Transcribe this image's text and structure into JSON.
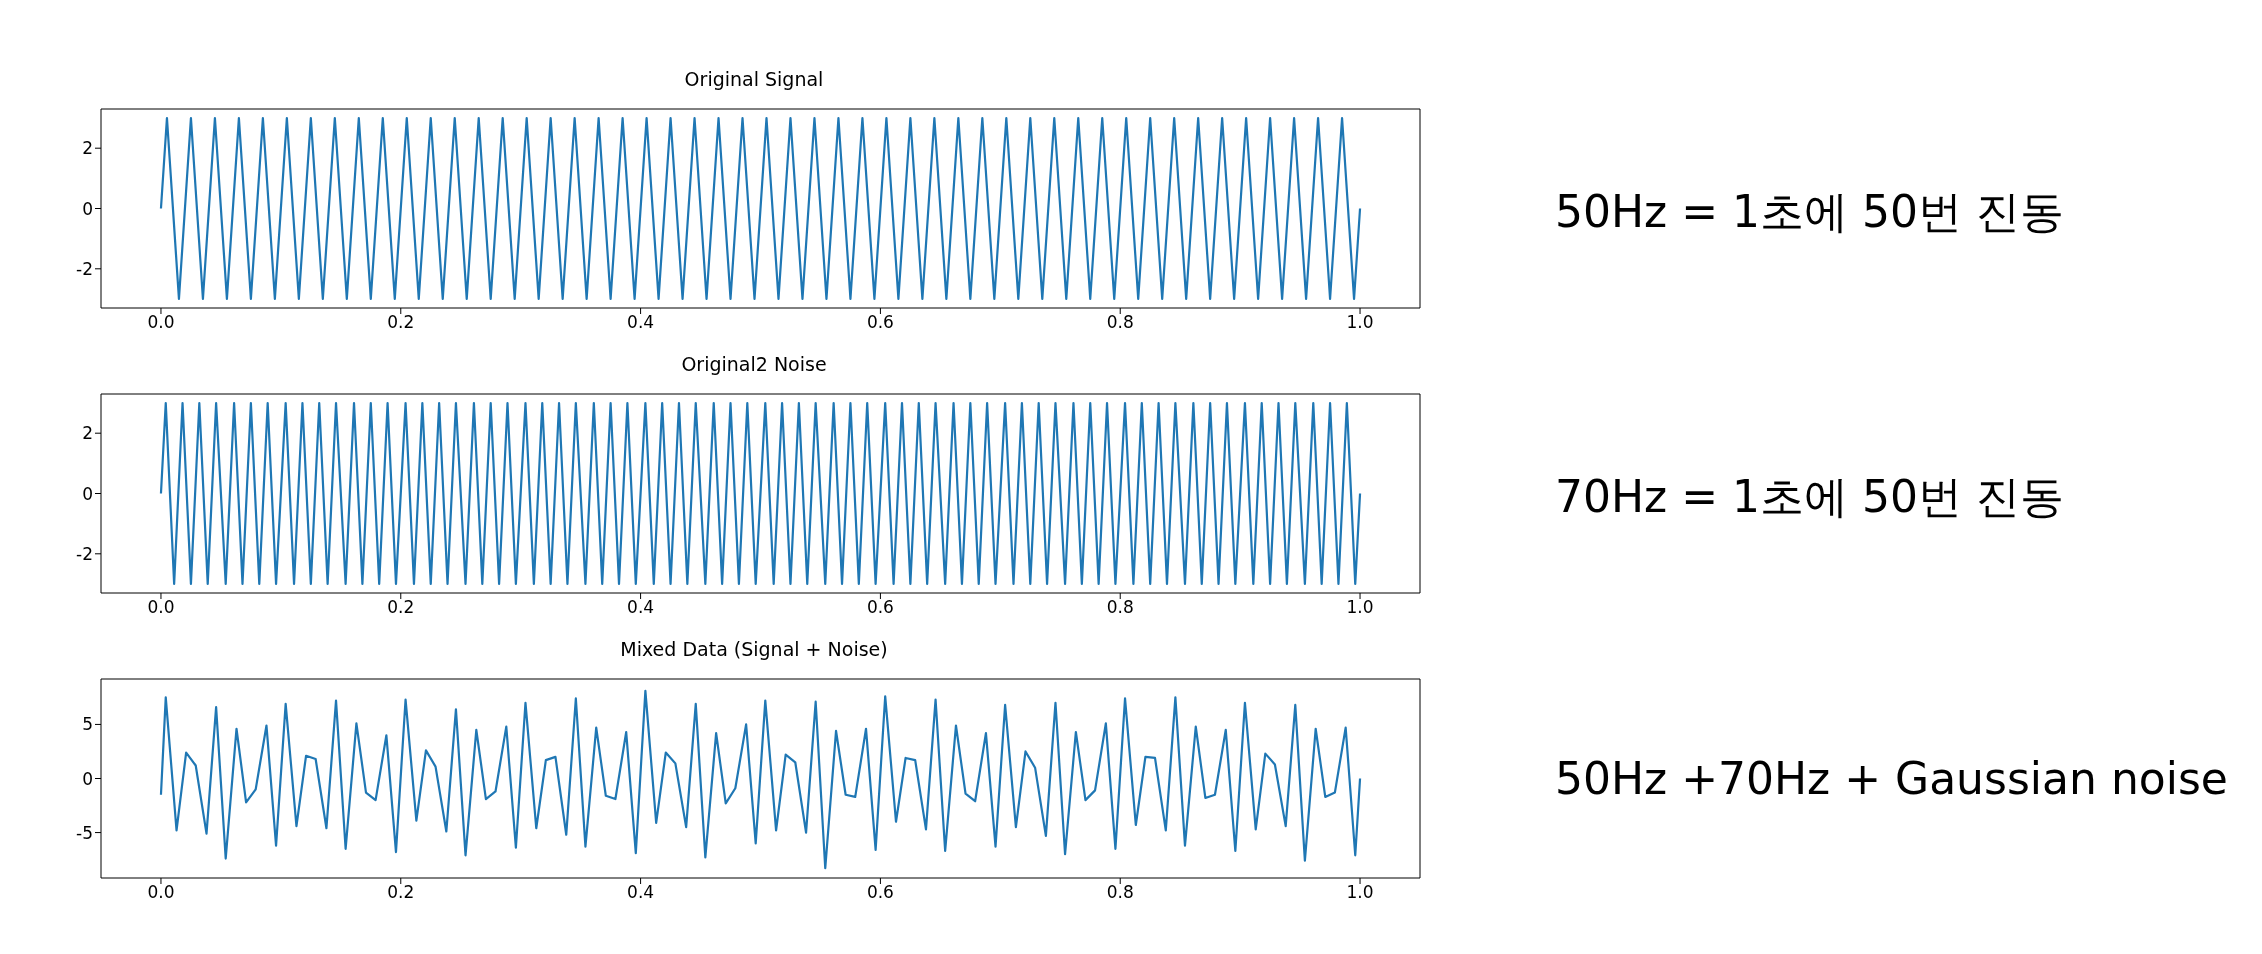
{
  "chart_data": [
    {
      "type": "line",
      "title": "Original Signal",
      "annotations": [
        "50Hz = 1초에 50번 진동"
      ],
      "xlim": [
        -0.05,
        1.05
      ],
      "xticks": [
        {
          "value": 0,
          "label": "0.0"
        },
        {
          "value": 0.2,
          "label": "0.2"
        },
        {
          "value": 0.4,
          "label": "0.4"
        },
        {
          "value": 0.6,
          "label": "0.6"
        },
        {
          "value": 0.8,
          "label": "0.8"
        },
        {
          "value": 1,
          "label": "1.0"
        }
      ],
      "ylim": [
        -3.3,
        3.3
      ],
      "yticks": [
        -2,
        0,
        2
      ],
      "series": [
        {
          "color": "#1f77b4",
          "x": [
            0,
            0.005,
            0.015,
            0.025,
            0.035,
            0.045,
            0.055,
            0.065,
            0.075,
            0.085,
            0.095,
            0.105,
            0.115,
            0.125,
            0.135,
            0.145,
            0.155,
            0.165,
            0.175,
            0.185,
            0.195,
            0.205,
            0.215,
            0.225,
            0.235,
            0.245,
            0.255,
            0.265,
            0.275,
            0.285,
            0.295,
            0.305,
            0.315,
            0.325,
            0.335,
            0.345,
            0.355,
            0.365,
            0.375,
            0.385,
            0.395,
            0.405,
            0.415,
            0.425,
            0.435,
            0.445,
            0.455,
            0.465,
            0.475,
            0.485,
            0.495,
            0.505,
            0.515,
            0.525,
            0.535,
            0.545,
            0.555,
            0.565,
            0.575,
            0.585,
            0.595,
            0.605,
            0.615,
            0.625,
            0.635,
            0.645,
            0.655,
            0.665,
            0.675,
            0.685,
            0.695,
            0.705,
            0.715,
            0.725,
            0.735,
            0.745,
            0.755,
            0.765,
            0.775,
            0.785,
            0.795,
            0.805,
            0.815,
            0.825,
            0.835,
            0.845,
            0.855,
            0.865,
            0.875,
            0.885,
            0.895,
            0.905,
            0.915,
            0.925,
            0.935,
            0.945,
            0.955,
            0.965,
            0.975,
            0.985,
            0.995,
            1
          ],
          "values": [
            0,
            3,
            -3,
            3,
            -3,
            3,
            -3,
            3,
            -3,
            3,
            -3,
            3,
            -3,
            3,
            -3,
            3,
            -3,
            3,
            -3,
            3,
            -3,
            3,
            -3,
            3,
            -3,
            3,
            -3,
            3,
            -3,
            3,
            -3,
            3,
            -3,
            3,
            -3,
            3,
            -3,
            3,
            -3,
            3,
            -3,
            3,
            -3,
            3,
            -3,
            3,
            -3,
            3,
            -3,
            3,
            -3,
            3,
            -3,
            3,
            -3,
            3,
            -3,
            3,
            -3,
            3,
            -3,
            3,
            -3,
            3,
            -3,
            3,
            -3,
            3,
            -3,
            3,
            -3,
            3,
            -3,
            3,
            -3,
            3,
            -3,
            3,
            -3,
            3,
            -3,
            3,
            -3,
            3,
            -3,
            3,
            -3,
            3,
            -3,
            3,
            -3,
            3,
            -3,
            3,
            -3,
            3,
            -3,
            3,
            -3,
            3,
            -3,
            0
          ]
        }
      ]
    },
    {
      "type": "line",
      "title": "Original2 Noise",
      "annotations": [
        "70Hz = 1초에 50번 진동"
      ],
      "xlim": [
        -0.05,
        1.05
      ],
      "xticks": [
        {
          "value": 0,
          "label": "0.0"
        },
        {
          "value": 0.2,
          "label": "0.2"
        },
        {
          "value": 0.4,
          "label": "0.4"
        },
        {
          "value": 0.6,
          "label": "0.6"
        },
        {
          "value": 0.8,
          "label": "0.8"
        },
        {
          "value": 1,
          "label": "1.0"
        }
      ],
      "ylim": [
        -3.3,
        3.3
      ],
      "yticks": [
        -2,
        0,
        2
      ],
      "series": [
        {
          "color": "#1f77b4",
          "x": [
            0,
            0.004,
            0.011,
            0.018,
            0.025,
            0.032,
            0.039,
            0.046,
            0.054,
            0.061,
            0.068,
            0.075,
            0.082,
            0.089,
            0.096,
            0.104,
            0.111,
            0.118,
            0.125,
            0.132,
            0.139,
            0.146,
            0.154,
            0.161,
            0.168,
            0.175,
            0.182,
            0.189,
            0.196,
            0.204,
            0.211,
            0.218,
            0.225,
            0.232,
            0.239,
            0.246,
            0.254,
            0.261,
            0.268,
            0.275,
            0.282,
            0.289,
            0.296,
            0.304,
            0.311,
            0.318,
            0.325,
            0.332,
            0.339,
            0.346,
            0.354,
            0.361,
            0.368,
            0.375,
            0.382,
            0.389,
            0.396,
            0.404,
            0.411,
            0.418,
            0.425,
            0.432,
            0.439,
            0.446,
            0.454,
            0.461,
            0.468,
            0.475,
            0.482,
            0.489,
            0.496,
            0.504,
            0.511,
            0.518,
            0.525,
            0.532,
            0.539,
            0.546,
            0.554,
            0.561,
            0.568,
            0.575,
            0.582,
            0.589,
            0.596,
            0.604,
            0.611,
            0.618,
            0.625,
            0.632,
            0.639,
            0.646,
            0.654,
            0.661,
            0.668,
            0.675,
            0.682,
            0.689,
            0.696,
            0.704,
            0.711,
            0.718,
            0.725,
            0.732,
            0.739,
            0.746,
            0.754,
            0.761,
            0.768,
            0.775,
            0.782,
            0.789,
            0.796,
            0.804,
            0.811,
            0.818,
            0.825,
            0.832,
            0.839,
            0.846,
            0.854,
            0.861,
            0.868,
            0.875,
            0.882,
            0.889,
            0.896,
            0.904,
            0.911,
            0.918,
            0.925,
            0.932,
            0.939,
            0.946,
            0.954,
            0.961,
            0.968,
            0.975,
            0.982,
            0.989,
            0.996,
            1
          ],
          "values": [
            0,
            3,
            -3,
            3,
            -3,
            3,
            -3,
            3,
            -3,
            3,
            -3,
            3,
            -3,
            3,
            -3,
            3,
            -3,
            3,
            -3,
            3,
            -3,
            3,
            -3,
            3,
            -3,
            3,
            -3,
            3,
            -3,
            3,
            -3,
            3,
            -3,
            3,
            -3,
            3,
            -3,
            3,
            -3,
            3,
            -3,
            3,
            -3,
            3,
            -3,
            3,
            -3,
            3,
            -3,
            3,
            -3,
            3,
            -3,
            3,
            -3,
            3,
            -3,
            3,
            -3,
            3,
            -3,
            3,
            -3,
            3,
            -3,
            3,
            -3,
            3,
            -3,
            3,
            -3,
            3,
            -3,
            3,
            -3,
            3,
            -3,
            3,
            -3,
            3,
            -3,
            3,
            -3,
            3,
            -3,
            3,
            -3,
            3,
            -3,
            3,
            -3,
            3,
            -3,
            3,
            -3,
            3,
            -3,
            3,
            -3,
            3,
            -3,
            3,
            -3,
            3,
            -3,
            3,
            -3,
            3,
            -3,
            3,
            -3,
            3,
            -3,
            3,
            -3,
            3,
            -3,
            3,
            -3,
            3,
            -3,
            3,
            -3,
            3,
            -3,
            3,
            -3,
            3,
            -3,
            3,
            -3,
            3,
            -3,
            3,
            -3,
            3,
            -3,
            3,
            -3,
            3,
            -3,
            0
          ]
        }
      ]
    },
    {
      "type": "line",
      "title": "Mixed Data (Signal + Noise)",
      "annotations": [
        "50Hz +70Hz + Gaussian noise"
      ],
      "xlim": [
        -0.05,
        1.05
      ],
      "xticks": [
        {
          "value": 0,
          "label": "0.0"
        },
        {
          "value": 0.2,
          "label": "0.2"
        },
        {
          "value": 0.4,
          "label": "0.4"
        },
        {
          "value": 0.6,
          "label": "0.6"
        },
        {
          "value": 0.8,
          "label": "0.8"
        },
        {
          "value": 1,
          "label": "1.0"
        }
      ],
      "ylim": [
        -9.2,
        9.2
      ],
      "yticks": [
        -5,
        0,
        5
      ],
      "series": [
        {
          "color": "#1f77b4",
          "x": [
            0,
            0.004,
            0.013,
            0.021,
            0.029,
            0.038,
            0.046,
            0.054,
            0.063,
            0.071,
            0.079,
            0.088,
            0.096,
            0.104,
            0.113,
            0.121,
            0.129,
            0.138,
            0.146,
            0.154,
            0.163,
            0.171,
            0.179,
            0.188,
            0.196,
            0.204,
            0.213,
            0.221,
            0.229,
            0.238,
            0.246,
            0.254,
            0.263,
            0.271,
            0.279,
            0.288,
            0.296,
            0.304,
            0.313,
            0.321,
            0.329,
            0.338,
            0.346,
            0.354,
            0.363,
            0.371,
            0.379,
            0.388,
            0.396,
            0.404,
            0.413,
            0.421,
            0.429,
            0.438,
            0.446,
            0.454,
            0.463,
            0.471,
            0.479,
            0.488,
            0.496,
            0.504,
            0.513,
            0.521,
            0.529,
            0.538,
            0.546,
            0.554,
            0.563,
            0.571,
            0.579,
            0.588,
            0.596,
            0.604,
            0.613,
            0.621,
            0.629,
            0.638,
            0.646,
            0.654,
            0.663,
            0.671,
            0.679,
            0.688,
            0.696,
            0.704,
            0.713,
            0.721,
            0.729,
            0.738,
            0.746,
            0.754,
            0.763,
            0.771,
            0.779,
            0.788,
            0.796,
            0.804,
            0.813,
            0.821,
            0.829,
            0.838,
            0.846,
            0.854,
            0.863,
            0.871,
            0.879,
            0.888,
            0.896,
            0.904,
            0.913,
            0.921,
            0.929,
            0.938,
            0.946,
            0.954,
            0.963,
            0.971,
            0.979,
            0.988,
            0.996,
            1
          ],
          "values": [
            -1.5,
            7.5,
            -4.8,
            2.4,
            1.2,
            -5.1,
            6.6,
            -7.4,
            4.6,
            -2.2,
            -1.0,
            4.9,
            -6.2,
            6.9,
            -4.4,
            2.1,
            1.8,
            -4.6,
            7.2,
            -6.5,
            5.1,
            -1.3,
            -2.0,
            4.0,
            -6.8,
            7.3,
            -3.9,
            2.6,
            1.1,
            -4.9,
            6.4,
            -7.1,
            4.5,
            -1.9,
            -1.2,
            4.8,
            -6.4,
            7.0,
            -4.6,
            1.7,
            2.0,
            -5.2,
            7.4,
            -6.3,
            4.7,
            -1.6,
            -1.9,
            4.3,
            -6.9,
            8.1,
            -4.1,
            2.4,
            1.4,
            -4.5,
            6.9,
            -7.3,
            4.2,
            -2.3,
            -0.9,
            5.0,
            -6.0,
            7.2,
            -4.8,
            2.2,
            1.5,
            -5.0,
            7.1,
            -8.3,
            4.4,
            -1.5,
            -1.7,
            4.6,
            -6.6,
            7.6,
            -4.0,
            1.9,
            1.7,
            -4.7,
            7.3,
            -6.7,
            4.9,
            -1.4,
            -2.1,
            4.2,
            -6.3,
            6.8,
            -4.5,
            2.5,
            1.0,
            -5.3,
            7.0,
            -7.0,
            4.3,
            -2.0,
            -1.1,
            5.1,
            -6.5,
            7.4,
            -4.3,
            2.0,
            1.9,
            -4.8,
            7.5,
            -6.2,
            4.8,
            -1.8,
            -1.5,
            4.5,
            -6.7,
            7.0,
            -4.7,
            2.3,
            1.3,
            -4.4,
            6.8,
            -7.6,
            4.6,
            -1.7,
            -1.3,
            4.7,
            -7.1,
            0
          ]
        }
      ]
    }
  ]
}
